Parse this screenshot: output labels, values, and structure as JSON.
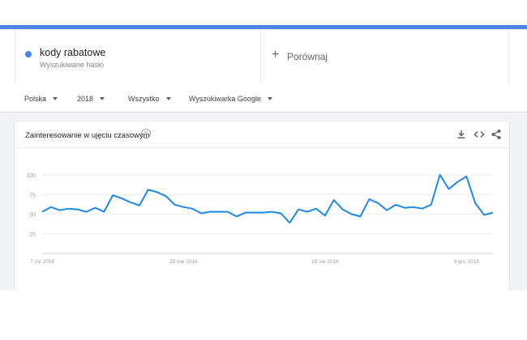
{
  "search_term": {
    "name": "kody rabatowe",
    "subtitle": "Wyszukiwane hasło",
    "color": "#4285f4"
  },
  "compare": {
    "icon": "+",
    "label": "Porównaj"
  },
  "filters": [
    {
      "label": "Polska"
    },
    {
      "label": "2018"
    },
    {
      "label": "Wszystko"
    },
    {
      "label": "Wyszukiwarka Google"
    }
  ],
  "card": {
    "title": "Zainteresowanie w ujęciu czasowym",
    "help_icon": "?",
    "icons": [
      "download-icon",
      "embed-icon",
      "share-icon"
    ]
  },
  "chart_data": {
    "type": "line",
    "title": "",
    "xlabel": "",
    "ylabel": "",
    "ylim": [
      0,
      100
    ],
    "yticks": [
      25,
      50,
      75,
      100
    ],
    "xtick_labels": [
      "7 sty 2018",
      "29 kwi 2018",
      "19 sie 2018",
      "9 gru 2018"
    ],
    "grid": true,
    "series": [
      {
        "color": "#1e88e5",
        "values": [
          53,
          59,
          55,
          57,
          56,
          53,
          58,
          53,
          74,
          70,
          65,
          61,
          81,
          78,
          73,
          62,
          59,
          57,
          51,
          53,
          53,
          53,
          47,
          52,
          52,
          52,
          53,
          51,
          39,
          56,
          53,
          57,
          48,
          68,
          56,
          50,
          47,
          69,
          64,
          55,
          62,
          58,
          59,
          57,
          62,
          100,
          82,
          91,
          98,
          64,
          49,
          52
        ]
      }
    ]
  }
}
